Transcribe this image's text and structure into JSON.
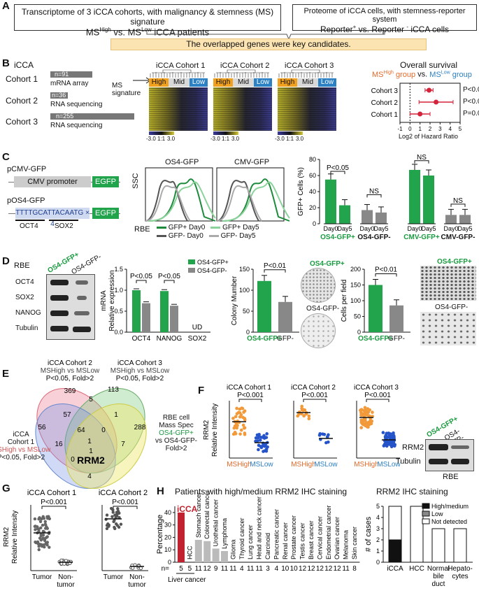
{
  "panel_a": {
    "label": "A",
    "left_box_line1": "Transcriptome of 3 iCCA cohorts, with malignancy & stemness (MS) signature",
    "left_box_line2": "MSHigh vs. MSLow iCCA patients",
    "right_box_line1": "Proteome of iCCA cells, with stemness-reporter system",
    "right_box_line2": "Reporter+ vs. Reporter - iCCA cells",
    "band": "The overlapped genes were key candidates."
  },
  "panel_b": {
    "label": "B",
    "title": "iCCA",
    "cohorts": [
      {
        "name": "Cohort 1",
        "n": "n=91",
        "platform": "mRNA array"
      },
      {
        "name": "Cohort 2",
        "n": "n=36",
        "platform": "RNA sequencing"
      },
      {
        "name": "Cohort 3",
        "n": "n=255",
        "platform": "RNA sequencing"
      }
    ],
    "ms_signature": "MS signature",
    "heatmaps": [
      "iCCA Cohort 1",
      "iCCA Cohort 2",
      "iCCA Cohort 3"
    ],
    "groups": [
      "High",
      "Mid",
      "Low"
    ],
    "scale": [
      "-3.0",
      "1:1",
      "3.0"
    ],
    "os_title": "Overall survival",
    "os_subtitle_high": "MSHigh group",
    "os_subtitle_vs": "vs.",
    "os_subtitle_low": "MSLow group",
    "os_xlabel": "Log2 of Hazard Ratio",
    "os_ticks": [
      "-1",
      "0",
      "1",
      "2",
      "3",
      "4",
      "5"
    ],
    "os_rows": [
      {
        "label": "Cohort 3",
        "p": "P<0.001"
      },
      {
        "label": "Cohort 2",
        "p": "P<0.05"
      },
      {
        "label": "Cohort 1",
        "p": "P=0.09"
      }
    ]
  },
  "panel_c": {
    "label": "C",
    "pcmv": "pCMV-GFP",
    "cmv_promoter": "CMV promoter",
    "egfp": "EGFP",
    "pos4": "pOS4-GFP",
    "os4_seq": "TTTTGCATTACAATG × 4",
    "oct4": "OCT4",
    "sox2": "SOX2",
    "flow_titles": [
      "OS4-GFP",
      "CMV-GFP"
    ],
    "ssc": "SSC",
    "rbe": "RBE",
    "legend": [
      "GFP+ Day0",
      "GFP+ Day5",
      "GFP- Day0",
      "GFP- Day5"
    ],
    "bar_ylabel": "GFP+ Cells (%)",
    "bar_ticks": [
      "0",
      "20",
      "40",
      "60",
      "80"
    ],
    "day_labels": [
      "Day0",
      "Day5"
    ],
    "groups": [
      "OS4-GFP+",
      "OS4-GFP-",
      "CMV-GFP+",
      "CMV-GFP-"
    ],
    "sig": [
      "P<0.05",
      "NS",
      "NS",
      "NS"
    ]
  },
  "panel_d": {
    "label": "D",
    "rbe": "RBE",
    "lanes": [
      "OS4-GFP+",
      "OS4-GFP-"
    ],
    "blot_rows": [
      "OCT4",
      "SOX2",
      "NANOG",
      "Tubulin"
    ],
    "mrna_ylabel": "mRNA Relative expression",
    "mrna_ticks": [
      "0.0",
      "0.5",
      "1.0",
      "1.5"
    ],
    "mrna_genes": [
      "OCT4",
      "NANOG",
      "SOX2"
    ],
    "mrna_sig": [
      "P<0.05",
      "P<0.05"
    ],
    "ud": "UD",
    "legend": [
      "OS4-GFP+",
      "OS4-GFP-"
    ],
    "colony_ylabel": "Colony Mumber",
    "colony_ticks": [
      "0",
      "50",
      "100",
      "150"
    ],
    "colony_sig": "P<0.01",
    "colony_x": [
      "OS4-GFP+",
      "GFP-"
    ],
    "plate_labels": [
      "OS4-GFP+",
      "OS4-GFP-"
    ],
    "cells_ylabel": "Cells per field",
    "cells_ticks": [
      "0",
      "50",
      "100",
      "150",
      "200"
    ],
    "cells_sig": "P<0.01",
    "cells_x": [
      "OS4-GFP+",
      "GFP-"
    ],
    "field_labels": [
      "OS4-GFP+",
      "OS4-GFP-"
    ]
  },
  "panel_e": {
    "label": "E",
    "set_c1": [
      "iCCA",
      "Cohort 1",
      "MSHigh vs MSLow",
      "P<0.05, Fold>2"
    ],
    "set_c2": [
      "iCCA Cohort 2",
      "MSHigh vs MSLow",
      "P<0.05, Fold>2"
    ],
    "set_c3": [
      "iCCA Cohort 3",
      "MSHigh vs MSLow",
      "P<0.05, Fold>2"
    ],
    "set_rbe": [
      "RBE cell",
      "Mass Spec",
      "OS4-GFP+",
      "vs OS4-GFP-",
      "Fold>2"
    ],
    "numbers": [
      "369",
      "113",
      "56",
      "5",
      "57",
      "1",
      "288",
      "64",
      "0",
      "1",
      "16",
      "7",
      "0",
      "4"
    ],
    "center": "RRM2",
    "center_n": "1"
  },
  "panel_f": {
    "label": "F",
    "ylabel": "RRM2 Relative Intensity",
    "titles": [
      "iCCA Cohort 1",
      "iCCA Cohort 2",
      "iCCA Cohort 3"
    ],
    "sig": "P<0.001",
    "x_high": "MSHigh",
    "x_low": "MSLow",
    "blot_lanes": [
      "OS4-GFP+",
      "OS4-GFP-"
    ],
    "blot_rows": [
      "RRM2",
      "Tubulin"
    ],
    "rbe": "RBE"
  },
  "panel_g": {
    "label": "G",
    "ylabel": "RRM2 Relative Intensity",
    "titles": [
      "iCCA Cohort 1",
      "iCCA Cohort 2"
    ],
    "sig": "P<0.001",
    "x": [
      "Tumor",
      "Non-tumor"
    ]
  },
  "panel_h": {
    "label": "H",
    "left_title": "Patients with high/medium RRM2 IHC staining",
    "ylabel": "Percentage",
    "yticks": [
      "0",
      "10",
      "20",
      "30",
      "40"
    ],
    "n_prefix": "n=",
    "liver_cancer": "Liver cancer",
    "right_title": "RRM2 IHC staining",
    "right_ylabel": "# of cases",
    "right_ticks": [
      "0",
      "1",
      "2",
      "3",
      "4",
      "5"
    ],
    "legend": [
      "High/medium",
      "Low",
      "Not detected"
    ],
    "right_categories": [
      "iCCA",
      "HCC",
      "Normal bile duct",
      "Hepato- cytes"
    ]
  },
  "chart_data": [
    {
      "type": "scatter",
      "title": "Overall survival",
      "xlabel": "Log2 of Hazard Ratio",
      "xlim": [
        -1,
        5
      ],
      "series": [
        {
          "name": "",
          "categories": [
            "Cohort 3",
            "Cohort 2",
            "Cohort 1"
          ],
          "values": [
            1.9,
            2.6,
            1.0
          ],
          "ci_low": [
            1.5,
            0.9,
            0.0
          ],
          "ci_high": [
            2.3,
            4.3,
            2.0
          ]
        }
      ]
    },
    {
      "type": "bar",
      "ylabel": "GFP+ Cells (%)",
      "ylim": [
        0,
        80
      ],
      "categories": [
        "OS4-GFP+ Day0",
        "OS4-GFP+ Day5",
        "OS4-GFP- Day0",
        "OS4-GFP- Day5",
        "CMV-GFP+ Day0",
        "CMV-GFP+ Day5",
        "CMV-GFP- Day0",
        "CMV-GFP- Day5"
      ],
      "values": [
        55,
        23,
        17,
        14,
        67,
        60,
        11,
        11
      ]
    },
    {
      "type": "bar",
      "ylabel": "mRNA Relative expression",
      "ylim": [
        0,
        1.5
      ],
      "categories": [
        "OCT4",
        "NANOG",
        "SOX2"
      ],
      "series": [
        {
          "name": "OS4-GFP+",
          "values": [
            1.0,
            0.98,
            0
          ]
        },
        {
          "name": "OS4-GFP-",
          "values": [
            0.69,
            0.63,
            0
          ]
        }
      ]
    },
    {
      "type": "bar",
      "ylabel": "Colony Mumber",
      "ylim": [
        0,
        150
      ],
      "categories": [
        "OS4-GFP+",
        "GFP-"
      ],
      "values": [
        122,
        72
      ]
    },
    {
      "type": "bar",
      "ylabel": "Cells per field",
      "ylim": [
        0,
        200
      ],
      "categories": [
        "OS4-GFP+",
        "GFP-"
      ],
      "values": [
        150,
        85
      ]
    },
    {
      "type": "bar",
      "title": "Patients with high/medium RRM2 IHC staining",
      "ylabel": "Percentage",
      "ylim": [
        0,
        45
      ],
      "categories": [
        "iCCA",
        "HCC",
        "Stomach cancer",
        "Colorectal cancer",
        "Urothelial cancer",
        "Lymphoma",
        "Glioma",
        "Thyroid cancer",
        "Lung cancer",
        "Head and neck cancer",
        "Carcinoid",
        "Pancreatic cancer",
        "Renal cancer",
        "Prostate cancer",
        "Testis cancer",
        "Breast cancer",
        "Cervical cancer",
        "Endometrial cancer",
        "Ovarian cancer",
        "Melanoma",
        "Skin cancer"
      ],
      "n": [
        "5",
        "5",
        "11",
        "12",
        "9",
        "11",
        "11",
        "4",
        "11",
        "11",
        "3",
        "4",
        "10",
        "10",
        "12",
        "12",
        "12",
        "12",
        "12",
        "11",
        "8"
      ],
      "values": [
        40,
        0,
        18,
        17,
        11,
        9,
        0,
        0,
        0,
        0,
        0,
        0,
        0,
        0,
        0,
        0,
        0,
        0,
        0,
        0,
        0
      ]
    },
    {
      "type": "bar",
      "title": "RRM2 IHC staining",
      "ylabel": "# of cases",
      "ylim": [
        0,
        5
      ],
      "categories": [
        "iCCA",
        "HCC",
        "Normal bile duct",
        "Hepato- cytes"
      ],
      "series": [
        {
          "name": "High/medium",
          "values": [
            2,
            0,
            0,
            0
          ]
        },
        {
          "name": "Low",
          "values": [
            0,
            0,
            0,
            0
          ]
        },
        {
          "name": "Not detected",
          "values": [
            3,
            5,
            3,
            3
          ]
        }
      ]
    }
  ]
}
